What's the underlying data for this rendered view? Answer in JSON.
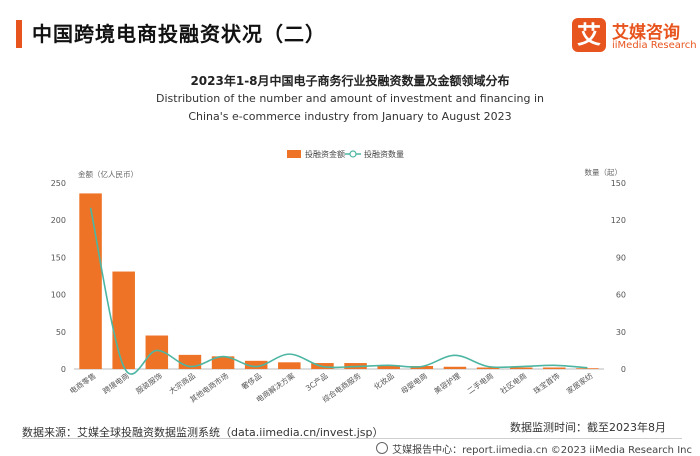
{
  "header": {
    "title": "中国跨境电商投融资状况（二）"
  },
  "logo": {
    "glyph": "艾",
    "name_cn": "艾媒咨询",
    "name_en": "iiMedia Research"
  },
  "chart_heading": {
    "title": "2023年1-8月中国电子商务行业投融资数量及金额领域分布",
    "subtitle_line1": "Distribution of the number and amount of investment and financing in",
    "subtitle_line2": "China's e-commerce industry from January to August 2023"
  },
  "chart_data": {
    "type": "bar",
    "categories": [
      "电商零售",
      "跨境电商",
      "服装服饰",
      "大宗商品",
      "其他电商市场",
      "奢侈品",
      "电商解决方案",
      "3C产品",
      "综合电商服务",
      "化妆品",
      "母婴电商",
      "美容护理",
      "二手电商",
      "社区电商",
      "珠宝首饰",
      "家居家纺"
    ],
    "series": [
      {
        "name": "投融资金额",
        "type": "bar",
        "axis": "left",
        "values": [
          236,
          131,
          45,
          19,
          17,
          11,
          9,
          8,
          8,
          5,
          4,
          3,
          2,
          2,
          2,
          1
        ]
      },
      {
        "name": "投融资数量",
        "type": "line",
        "axis": "right",
        "values": [
          130,
          2,
          15,
          2,
          10,
          2,
          12,
          2,
          2,
          3,
          2,
          11,
          2,
          2,
          3,
          1
        ]
      }
    ],
    "left_axis": {
      "label": "金额（亿人民币）",
      "ylim": [
        0,
        250
      ],
      "ticks": [
        0,
        50,
        100,
        150,
        200,
        250
      ]
    },
    "right_axis": {
      "label": "数量（起）",
      "ylim": [
        0,
        150
      ],
      "ticks": [
        0,
        30,
        60,
        90,
        120,
        150
      ]
    },
    "legend_position": "top-center",
    "grid": false,
    "colors": {
      "bar": "#ee7326",
      "line": "#4db6a3"
    }
  },
  "footer": {
    "source": "数据来源：艾媒全球投融资数据监测系统（data.iimedia.cn/invest.jsp）",
    "period": "数据监测时间：截至2023年8月",
    "copyright": "艾媒报告中心：report.iimedia.cn  ©2023  iiMedia Research  Inc"
  },
  "accent_color": "#e8541e"
}
